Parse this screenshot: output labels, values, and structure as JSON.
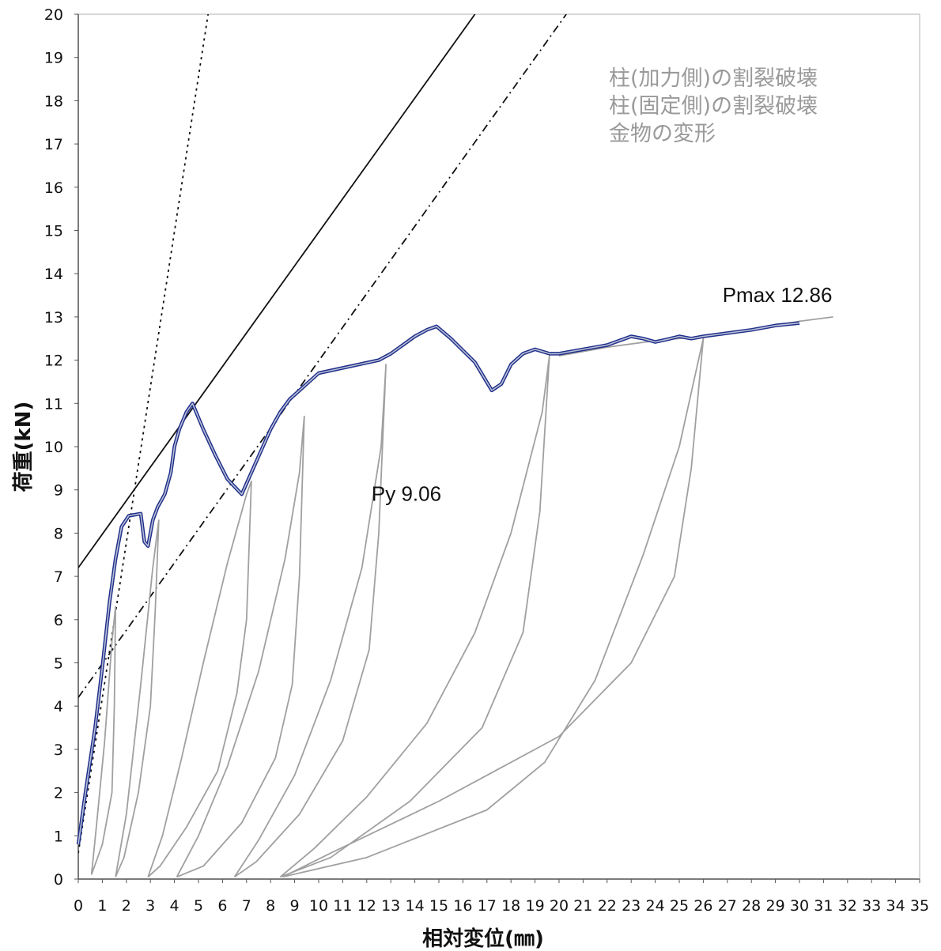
{
  "chart_data": {
    "type": "line",
    "xlabel": "相対変位(㎜)",
    "ylabel": "荷重(kN)",
    "xlim": [
      0,
      35
    ],
    "ylim": [
      0,
      20
    ],
    "x_ticks": [
      0,
      1,
      2,
      3,
      4,
      5,
      6,
      7,
      8,
      9,
      10,
      11,
      12,
      13,
      14,
      15,
      16,
      17,
      18,
      19,
      20,
      21,
      22,
      23,
      24,
      25,
      26,
      27,
      28,
      29,
      30,
      31,
      32,
      33,
      34,
      35
    ],
    "y_ticks": [
      0,
      1,
      2,
      3,
      4,
      5,
      6,
      7,
      8,
      9,
      10,
      11,
      12,
      13,
      14,
      15,
      16,
      17,
      18,
      19,
      20
    ],
    "grid": false,
    "legend_position": "top-right",
    "legend": [
      "柱(加力側)の割裂破壊",
      "柱(固定側)の割裂破壊",
      "金物の変形"
    ],
    "annotations": [
      {
        "text": "Pmax 12.86",
        "x": 26.8,
        "y": 13.35
      },
      {
        "text": "Py 9.06",
        "x": 12.2,
        "y": 8.75
      }
    ],
    "series": [
      {
        "role": "envelope",
        "color": "#1f2f8a",
        "x": [
          0,
          0.3,
          0.7,
          1.0,
          1.3,
          1.55,
          1.8,
          2.1,
          2.3,
          2.6,
          2.75,
          2.9,
          3.1,
          3.3,
          3.6,
          3.85,
          4.0,
          4.2,
          4.5,
          4.75,
          5.2,
          5.7,
          6.2,
          6.8,
          7.2,
          7.6,
          8.0,
          8.4,
          8.8,
          9.2,
          9.6,
          10.0,
          12.5,
          13.0,
          13.5,
          14.0,
          14.5,
          14.9,
          15.5,
          16.5,
          17.2,
          17.6,
          18.0,
          18.5,
          19.0,
          19.6,
          20.0,
          22.0,
          22.5,
          23.0,
          23.5,
          24.0,
          24.5,
          25.0,
          25.5,
          26.0,
          28.0,
          29.0,
          30.0
        ],
        "y": [
          0.8,
          2.0,
          3.5,
          4.9,
          6.4,
          7.4,
          8.15,
          8.4,
          8.42,
          8.45,
          7.8,
          7.7,
          8.3,
          8.6,
          8.9,
          9.4,
          10.0,
          10.4,
          10.8,
          11.0,
          10.4,
          9.8,
          9.25,
          8.9,
          9.4,
          9.9,
          10.4,
          10.8,
          11.1,
          11.3,
          11.5,
          11.7,
          12.0,
          12.15,
          12.35,
          12.55,
          12.7,
          12.78,
          12.5,
          11.95,
          11.3,
          11.45,
          11.9,
          12.15,
          12.25,
          12.15,
          12.15,
          12.35,
          12.45,
          12.55,
          12.5,
          12.42,
          12.48,
          12.55,
          12.5,
          12.55,
          12.7,
          12.8,
          12.86
        ]
      },
      {
        "role": "initial-stiffness-line",
        "style": "dotted",
        "x": [
          0,
          5.4
        ],
        "y": [
          0.6,
          20
        ]
      },
      {
        "role": "tangent-line",
        "style": "solid",
        "x": [
          0,
          16.5
        ],
        "y": [
          7.2,
          20
        ]
      },
      {
        "role": "secant-line",
        "style": "dash-dot",
        "x": [
          0,
          20.3
        ],
        "y": [
          4.2,
          20
        ]
      },
      {
        "role": "hysteresis-loop",
        "color": "#a0a0a0",
        "x": [
          0.55,
          0.75,
          1.1,
          1.4,
          1.55,
          1.5,
          1.4,
          1.0,
          0.55
        ],
        "y": [
          0.1,
          1.2,
          3.2,
          5.5,
          6.3,
          4.0,
          2.0,
          0.8,
          0.1
        ]
      },
      {
        "role": "hysteresis-loop",
        "color": "#a0a0a0",
        "x": [
          1.55,
          2.0,
          2.6,
          3.1,
          3.35,
          3.2,
          3.0,
          2.5,
          1.9,
          1.55
        ],
        "y": [
          0.05,
          1.5,
          4.5,
          7.2,
          8.3,
          6.2,
          4.0,
          2.0,
          0.5,
          0.05
        ]
      },
      {
        "role": "hysteresis-loop",
        "color": "#a0a0a0",
        "x": [
          2.9,
          3.5,
          4.3,
          5.2,
          6.2,
          7.0,
          7.2,
          7.0,
          6.6,
          5.8,
          4.5,
          3.4,
          2.9
        ],
        "y": [
          0.05,
          1.0,
          2.8,
          5.0,
          7.3,
          8.9,
          9.2,
          6.0,
          4.3,
          2.5,
          1.2,
          0.3,
          0.05
        ]
      },
      {
        "role": "hysteresis-loop",
        "color": "#a0a0a0",
        "x": [
          4.1,
          5.0,
          6.2,
          7.5,
          8.6,
          9.2,
          9.4,
          9.2,
          8.9,
          8.2,
          6.8,
          5.2,
          4.1
        ],
        "y": [
          0.05,
          1.0,
          2.6,
          4.8,
          7.4,
          9.4,
          10.7,
          7.0,
          4.5,
          2.8,
          1.3,
          0.3,
          0.05
        ]
      },
      {
        "role": "hysteresis-loop",
        "color": "#a0a0a0",
        "x": [
          6.5,
          7.5,
          9.0,
          10.5,
          11.8,
          12.6,
          12.8,
          12.5,
          12.1,
          11.0,
          9.2,
          7.4,
          6.5
        ],
        "y": [
          0.05,
          0.9,
          2.4,
          4.6,
          7.2,
          10.0,
          11.9,
          8.0,
          5.3,
          3.2,
          1.5,
          0.4,
          0.05
        ]
      },
      {
        "role": "hysteresis-loop",
        "color": "#a0a0a0",
        "x": [
          8.4,
          9.8,
          12.0,
          14.5,
          16.5,
          18.0,
          19.3,
          19.6,
          19.2,
          18.5,
          16.8,
          13.8,
          10.5,
          8.4
        ],
        "y": [
          0.05,
          0.7,
          1.9,
          3.6,
          5.7,
          8.0,
          10.8,
          12.1,
          8.5,
          5.7,
          3.5,
          1.8,
          0.5,
          0.05
        ]
      },
      {
        "role": "hysteresis-loop",
        "color": "#a0a0a0",
        "x": [
          8.5,
          12.0,
          17.0,
          19.4,
          21.5,
          23.5,
          25.0,
          25.8,
          26.0,
          25.5,
          24.8,
          23.0,
          20.0,
          15.0,
          10.5,
          8.5
        ],
        "y": [
          0.05,
          0.5,
          1.6,
          2.7,
          4.6,
          7.5,
          10.0,
          12.0,
          12.5,
          9.5,
          7.0,
          5.0,
          3.3,
          1.8,
          0.6,
          0.05
        ]
      },
      {
        "role": "hysteresis-loop",
        "color": "#a0a0a0",
        "x": [
          20.0,
          22.0,
          24.0,
          26.0,
          28.0,
          30.0,
          31.4
        ],
        "y": [
          12.1,
          12.3,
          12.45,
          12.55,
          12.7,
          12.9,
          13.0
        ]
      }
    ]
  }
}
